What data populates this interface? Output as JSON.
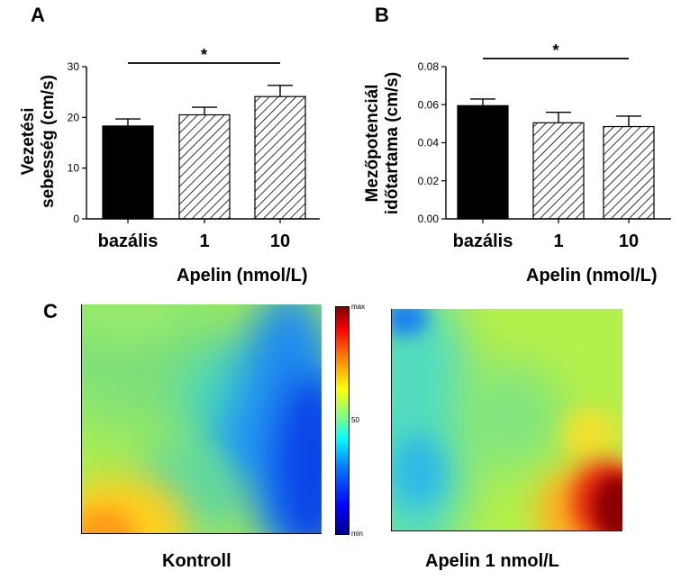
{
  "panels": {
    "a": "A",
    "b": "B",
    "c": "C"
  },
  "chart_data": [
    {
      "type": "bar",
      "title": "",
      "xlabel": "Apelin (nmol/L)",
      "ylabel": "Vezetési sebesség (cm/s)",
      "ylabel_lines": [
        "Vezetési",
        "sebesség (cm/s)"
      ],
      "categories": [
        "bazális",
        "1",
        "10"
      ],
      "values": [
        18.3,
        20.5,
        24.1
      ],
      "errors": [
        1.4,
        1.5,
        2.2
      ],
      "fills": [
        "solid",
        "hatched",
        "hatched"
      ],
      "ylim": [
        0,
        30
      ],
      "yticks": [
        "0",
        "10",
        "20",
        "30"
      ],
      "significance": {
        "label": "*",
        "from": "bazális",
        "to": "10"
      }
    },
    {
      "type": "bar",
      "title": "",
      "xlabel": "Apelin (nmol/L)",
      "ylabel": "Mezőpotenciál időtartama (cm/s)",
      "ylabel_lines": [
        "Mezőpotenciál",
        "időtartama (cm/s)"
      ],
      "categories": [
        "bazális",
        "1",
        "10"
      ],
      "values": [
        0.0595,
        0.0505,
        0.0485
      ],
      "errors": [
        0.0035,
        0.0055,
        0.0055
      ],
      "fills": [
        "solid",
        "hatched",
        "hatched"
      ],
      "ylim": [
        0,
        0.08
      ],
      "yticks": [
        "0.00",
        "0.02",
        "0.04",
        "0.06",
        "0.08"
      ],
      "significance": {
        "label": "*",
        "from": "bazális",
        "to": "10"
      }
    }
  ],
  "heatmaps": {
    "left_label": "Kontroll",
    "right_label": "Apelin 1 nmol/L",
    "colorbar": {
      "max": "max",
      "mid": "50",
      "min": "min"
    }
  },
  "colors": {
    "bar_solid": "#000000",
    "hatch": "#000000"
  }
}
